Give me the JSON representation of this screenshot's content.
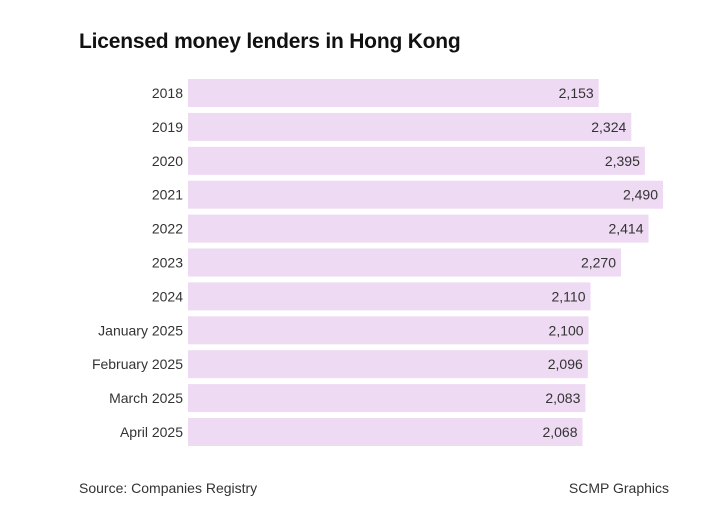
{
  "title": "Licensed money lenders in Hong Kong",
  "source": "Source: Companies Registry",
  "credit": "SCMP Graphics",
  "colors": {
    "bar": "#eedaf3",
    "text": "#333333",
    "title": "#111111"
  },
  "chart_data": {
    "type": "bar",
    "orientation": "horizontal",
    "title": "Licensed money lenders in Hong Kong",
    "categories": [
      "2018",
      "2019",
      "2020",
      "2021",
      "2022",
      "2023",
      "2024",
      "January 2025",
      "February 2025",
      "March 2025",
      "April 2025"
    ],
    "values": [
      2153,
      2324,
      2395,
      2490,
      2414,
      2270,
      2110,
      2100,
      2096,
      2083,
      2068
    ],
    "value_labels": [
      "2,153",
      "2,324",
      "2,395",
      "2,490",
      "2,414",
      "2,270",
      "2,110",
      "2,100",
      "2,096",
      "2,083",
      "2,068"
    ],
    "xlim": [
      0,
      2490
    ],
    "grid": false,
    "legend": "none"
  }
}
